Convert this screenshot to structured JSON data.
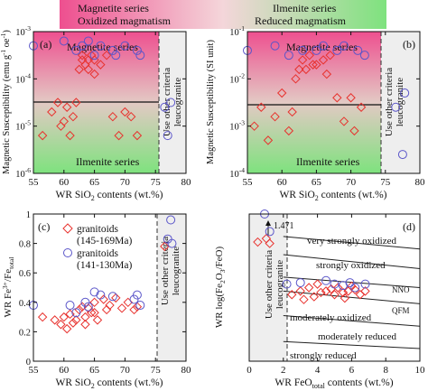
{
  "legend_bar": {
    "left_top": "Magnetite series",
    "left_bottom": "Oxidized magmatism",
    "right_top": "Ilmenite series",
    "right_bottom": "Reduced magmatism",
    "color_left": "#ee4f8f",
    "color_right": "#7ee27e"
  },
  "colors": {
    "granitoid_red": "#e8322e",
    "granitoid_blue": "#5b56c9",
    "shade": "#eeeeee",
    "mag_top": "#ee4f8f",
    "mag_bottom": "#7ee27e"
  },
  "chart_data": [
    {
      "panel": "(a)",
      "type": "scatter",
      "xlabel": "WR SiO",
      "xlabel_sub": "2",
      "xlabel_tail": " contents (wt.%)",
      "ylabel": "Magnetic Susceptibility (emu g",
      "ylabel_sup": "-1",
      "ylabel_tail": " oe",
      "ylabel_sup2": "-1",
      "ylabel_close": ")",
      "x_ticks": [
        "55",
        "60",
        "65",
        "70",
        "75",
        "80"
      ],
      "xlim": [
        55,
        80
      ],
      "ylim_log10": [
        -6,
        -3
      ],
      "y_ticks": [
        {
          "base": "10",
          "exp": "-3"
        },
        {
          "base": "10",
          "exp": "-4"
        },
        {
          "base": "10",
          "exp": "-5"
        },
        {
          "base": "10",
          "exp": "-6"
        }
      ],
      "divider_x": 74,
      "boundary_log10": -4,
      "region_top": "Magnetite series",
      "region_bottom": "Ilmenite series",
      "shade_label_1": "Use other criteria",
      "shade_label_2": "leucogranite",
      "series": [
        {
          "marker": "diamond",
          "points": [
            [
              56.5,
              -5.2
            ],
            [
              58,
              -4.7
            ],
            [
              59,
              -4.5
            ],
            [
              59.5,
              -5.0
            ],
            [
              60,
              -4.9
            ],
            [
              60.5,
              -4.6
            ],
            [
              61,
              -5.2
            ],
            [
              61.5,
              -4.8
            ],
            [
              62,
              -4.5
            ],
            [
              62.5,
              -3.8
            ],
            [
              63,
              -3.6
            ],
            [
              63,
              -3.5
            ],
            [
              63.5,
              -3.7
            ],
            [
              64,
              -3.6
            ],
            [
              64,
              -3.8
            ],
            [
              64.5,
              -3.5
            ],
            [
              65,
              -3.6
            ],
            [
              65,
              -3.9
            ],
            [
              66,
              -3.7
            ],
            [
              67,
              -3.5
            ],
            [
              68,
              -4.8
            ],
            [
              69,
              -5.2
            ],
            [
              70,
              -4.7
            ],
            [
              71,
              -4.8
            ],
            [
              72,
              -5.2
            ]
          ]
        },
        {
          "marker": "circle",
          "points": [
            [
              55,
              -3.3
            ],
            [
              60,
              -3.2
            ],
            [
              62,
              -3.4
            ],
            [
              63,
              -3.3
            ],
            [
              64,
              -3.2
            ],
            [
              65,
              -3.5
            ],
            [
              66,
              -3.3
            ],
            [
              68,
              -3.4
            ],
            [
              68.5,
              -3.5
            ],
            [
              70,
              -3.3
            ],
            [
              72,
              -3.4
            ],
            [
              72.5,
              -3.5
            ],
            [
              76.5,
              -4.6
            ],
            [
              77,
              -5.2
            ],
            [
              77.5,
              -4.5
            ]
          ]
        }
      ]
    },
    {
      "panel": "(b)",
      "type": "scatter",
      "xlabel": "WR SiO",
      "xlabel_sub": "2",
      "xlabel_tail": " contents (wt.%)",
      "ylabel": "Magnetic Susceptibility (SI unit)",
      "x_ticks": [
        "55",
        "60",
        "65",
        "70",
        "75",
        "80"
      ],
      "xlim": [
        55,
        80
      ],
      "ylim_log10": [
        -4,
        -1
      ],
      "y_ticks": [
        {
          "base": "10",
          "exp": "-1"
        },
        {
          "base": "10",
          "exp": "-2"
        },
        {
          "base": "10",
          "exp": "-3"
        },
        {
          "base": "10",
          "exp": "-4"
        }
      ],
      "divider_x": 74,
      "boundary_log10": -2.1,
      "region_top": "Magnetite series",
      "region_bottom": "Ilmenite series",
      "shade_label_1": "Use other criteria",
      "shade_label_2": "leucogranite",
      "series": [
        {
          "marker": "diamond",
          "points": [
            [
              56,
              -3.0
            ],
            [
              57,
              -2.6
            ],
            [
              58,
              -3.3
            ],
            [
              59,
              -2.8
            ],
            [
              60,
              -2.3
            ],
            [
              61,
              -3.1
            ],
            [
              61.5,
              -2.7
            ],
            [
              62,
              -2.0
            ],
            [
              62.5,
              -1.8
            ],
            [
              63,
              -1.6
            ],
            [
              63.5,
              -1.8
            ],
            [
              64,
              -1.5
            ],
            [
              64.5,
              -1.7
            ],
            [
              65,
              -1.7
            ],
            [
              66,
              -1.6
            ],
            [
              66.5,
              -1.9
            ],
            [
              67,
              -1.5
            ],
            [
              68,
              -2.4
            ],
            [
              69,
              -2.9
            ],
            [
              70,
              -2.4
            ],
            [
              70.5,
              -3.1
            ],
            [
              71.5,
              -2.6
            ]
          ]
        },
        {
          "marker": "circle",
          "points": [
            [
              55,
              -1.4
            ],
            [
              59,
              -1.3
            ],
            [
              61,
              -1.5
            ],
            [
              63,
              -1.4
            ],
            [
              65,
              -1.4
            ],
            [
              66,
              -1.3
            ],
            [
              68,
              -1.4
            ],
            [
              69,
              -1.3
            ],
            [
              71,
              -1.4
            ],
            [
              72,
              -1.5
            ],
            [
              76.5,
              -2.6
            ],
            [
              77.5,
              -3.6
            ],
            [
              77.8,
              -2.3
            ]
          ]
        }
      ]
    },
    {
      "panel": "(c)",
      "type": "scatter",
      "xlabel": "WR SiO",
      "xlabel_sub": "2",
      "xlabel_tail": " contents (wt.%)",
      "ylabel": "WR Fe",
      "ylabel_sup": "3+",
      "ylabel_tail": "/Fe",
      "ylabel_sub2": "total",
      "x_ticks": [
        "55",
        "60",
        "65",
        "70",
        "75",
        "80"
      ],
      "xlim": [
        55,
        80
      ],
      "ylim": [
        0,
        1
      ],
      "y_ticks": [
        "0",
        "0.2",
        "0.4",
        "0.6",
        "0.8",
        "1"
      ],
      "divider_x": 74,
      "shade_label_1": "Use other criteria",
      "shade_label_2": "leucogranite",
      "legend": [
        {
          "marker": "diamond",
          "label_1": "granitoids",
          "label_2": "(145-169Ma)"
        },
        {
          "marker": "circle",
          "label_1": "granitoids",
          "label_2": "(141-130Ma)"
        }
      ],
      "series": [
        {
          "marker": "diamond",
          "points": [
            [
              56.5,
              0.3
            ],
            [
              58.5,
              0.28
            ],
            [
              59.5,
              0.25
            ],
            [
              60,
              0.3
            ],
            [
              60.5,
              0.22
            ],
            [
              61,
              0.32
            ],
            [
              61.5,
              0.26
            ],
            [
              62,
              0.28
            ],
            [
              62.5,
              0.35
            ],
            [
              63,
              0.37
            ],
            [
              63.5,
              0.3
            ],
            [
              63.5,
              0.25
            ],
            [
              64,
              0.36
            ],
            [
              64.5,
              0.33
            ],
            [
              65,
              0.4
            ],
            [
              65,
              0.33
            ],
            [
              65.5,
              0.28
            ],
            [
              66.5,
              0.42
            ],
            [
              67,
              0.35
            ],
            [
              67.5,
              0.38
            ],
            [
              68.5,
              0.43
            ],
            [
              69.5,
              0.36
            ],
            [
              70.5,
              0.4
            ],
            [
              71.5,
              0.35
            ],
            [
              72,
              0.37
            ],
            [
              76.5,
              0.78
            ]
          ]
        },
        {
          "marker": "circle",
          "points": [
            [
              55,
              0.38
            ],
            [
              61,
              0.38
            ],
            [
              62,
              0.33
            ],
            [
              63.5,
              0.4
            ],
            [
              64,
              0.37
            ],
            [
              65,
              0.47
            ],
            [
              66,
              0.45
            ],
            [
              68,
              0.44
            ],
            [
              71.5,
              0.42
            ],
            [
              72,
              0.45
            ],
            [
              72.5,
              0.38
            ],
            [
              77,
              0.83
            ],
            [
              77.5,
              0.96
            ],
            [
              77.7,
              0.8
            ]
          ]
        }
      ]
    },
    {
      "panel": "(d)",
      "type": "scatter",
      "xlabel": "WR FeO",
      "xlabel_sub": "total",
      "xlabel_tail": " contents (wt.%)",
      "ylabel": "WR log(Fe",
      "ylabel_sub": "2",
      "ylabel_mid": "O",
      "ylabel_sub2": "3",
      "ylabel_tail": "/FeO)",
      "x_ticks": [
        "0",
        "2",
        "4",
        "6",
        "8",
        "10"
      ],
      "xlim": [
        0,
        10
      ],
      "ylim": [
        -1.5,
        0.6
      ],
      "divider_x": 2,
      "shade_label_1": "Use other criteria",
      "shade_label_2": "leucogranite",
      "annotation": "1.471",
      "zones": [
        "very strongly oxidized",
        "strongly oxidized",
        "moderately oxidized",
        "moderately reduced",
        "strongly reduced"
      ],
      "buffers": [
        "NNO",
        "QFM"
      ],
      "series": [
        {
          "marker": "diamond",
          "points": [
            [
              0.5,
              0.2
            ],
            [
              1.0,
              0.25
            ],
            [
              1.2,
              0.18
            ],
            [
              2.5,
              -0.55
            ],
            [
              3.0,
              -0.5
            ],
            [
              3.2,
              -0.62
            ],
            [
              3.5,
              -0.45
            ],
            [
              3.8,
              -0.58
            ],
            [
              4.0,
              -0.4
            ],
            [
              4.2,
              -0.52
            ],
            [
              4.5,
              -0.5
            ],
            [
              4.8,
              -0.47
            ],
            [
              5.0,
              -0.55
            ],
            [
              5.2,
              -0.45
            ],
            [
              5.5,
              -0.52
            ],
            [
              5.6,
              -0.6
            ],
            [
              5.8,
              -0.5
            ],
            [
              6.0,
              -0.43
            ],
            [
              6.2,
              -0.48
            ],
            [
              6.5,
              -0.55
            ],
            [
              6.8,
              -0.5
            ]
          ]
        },
        {
          "marker": "circle",
          "points": [
            [
              0.9,
              0.6
            ],
            [
              1.2,
              0.35
            ],
            [
              2.2,
              -0.4
            ],
            [
              3.0,
              -0.38
            ],
            [
              4.5,
              -0.35
            ],
            [
              5.0,
              -0.4
            ],
            [
              5.5,
              -0.42
            ],
            [
              5.9,
              -0.38
            ],
            [
              6.2,
              -0.45
            ],
            [
              6.8,
              -0.4
            ]
          ]
        }
      ]
    }
  ]
}
